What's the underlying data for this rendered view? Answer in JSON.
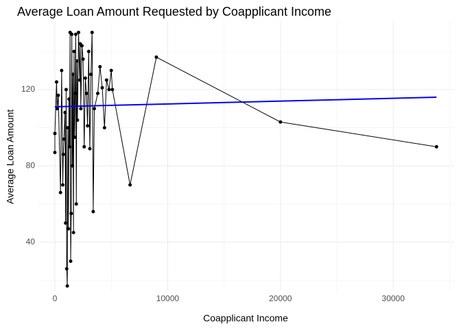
{
  "chart_data": {
    "type": "line",
    "title": "Average Loan Amount Requested by Coapplicant Income",
    "xlabel": "Coapplicant Income",
    "ylabel": "Average Loan Amount",
    "x": [
      0,
      0,
      150,
      200,
      300,
      500,
      600,
      700,
      750,
      800,
      900,
      950,
      1000,
      1050,
      1100,
      1150,
      1200,
      1250,
      1300,
      1350,
      1400,
      1450,
      1500,
      1550,
      1600,
      1650,
      1700,
      1750,
      1800,
      1850,
      1900,
      1950,
      2000,
      2100,
      2200,
      2250,
      2300,
      2400,
      2500,
      2600,
      2700,
      2800,
      2900,
      3000,
      3100,
      3200,
      3300,
      3400,
      3500,
      3800,
      4000,
      4200,
      4400,
      4583,
      4800,
      5000,
      5100,
      6667,
      9000,
      20000,
      33837
    ],
    "values": [
      87,
      97,
      124,
      110,
      117,
      66,
      130,
      70,
      86,
      94,
      108,
      50,
      120,
      26,
      17,
      100,
      47,
      115,
      90,
      150,
      30,
      55,
      149,
      80,
      128,
      45,
      140,
      95,
      118,
      149,
      60,
      135,
      104,
      150,
      125,
      144,
      110,
      143,
      136,
      90,
      126,
      118,
      101,
      140,
      89,
      128,
      150,
      56,
      110,
      118,
      132,
      121,
      100,
      125,
      120,
      130,
      120,
      70,
      137,
      103,
      90
    ],
    "color": "#000000",
    "trend": {
      "x": [
        0,
        33837
      ],
      "values": [
        111,
        116
      ],
      "color": "#0000ff"
    },
    "xlim": [
      -1520,
      35400
    ],
    "ylim": [
      14.4,
      155.5
    ],
    "xticks": [
      0,
      10000,
      20000,
      30000
    ],
    "yticks": [
      40,
      80,
      120
    ],
    "grid": true
  }
}
